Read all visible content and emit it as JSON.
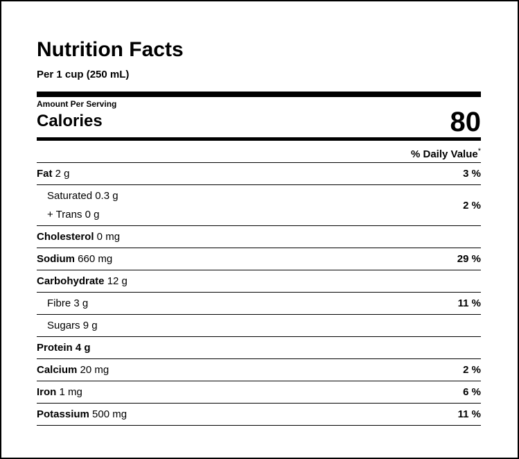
{
  "title": "Nutrition Facts",
  "serving": "Per 1 cup (250 mL)",
  "amount_per_serving": "Amount Per Serving",
  "calories": {
    "label": "Calories",
    "value": "80"
  },
  "daily_value_header": "% Daily Value",
  "daily_value_mark": "*",
  "nutrients": {
    "fat": {
      "label": "Fat",
      "amount": " 2 g",
      "dv": "3 %"
    },
    "saturated": {
      "label": "Saturated 0.3 g"
    },
    "trans": {
      "label": "+ Trans 0 g"
    },
    "sat_trans_dv": "2 %",
    "cholesterol": {
      "label": "Cholesterol",
      "amount": " 0 mg",
      "dv": ""
    },
    "sodium": {
      "label": "Sodium",
      "amount": " 660 mg",
      "dv": "29 %"
    },
    "carbohydrate": {
      "label": "Carbohydrate",
      "amount": " 12 g",
      "dv": ""
    },
    "fibre": {
      "label": "Fibre 3 g",
      "dv": "11 %"
    },
    "sugars": {
      "label": "Sugars 9 g",
      "dv": ""
    },
    "protein": {
      "label": "Protein 4 g",
      "dv": ""
    },
    "calcium": {
      "label": "Calcium",
      "amount": " 20 mg",
      "dv": "2 %"
    },
    "iron": {
      "label": "Iron",
      "amount": " 1 mg",
      "dv": "6 %"
    },
    "potassium": {
      "label": "Potassium",
      "amount": " 500 mg",
      "dv": "11 %"
    }
  }
}
